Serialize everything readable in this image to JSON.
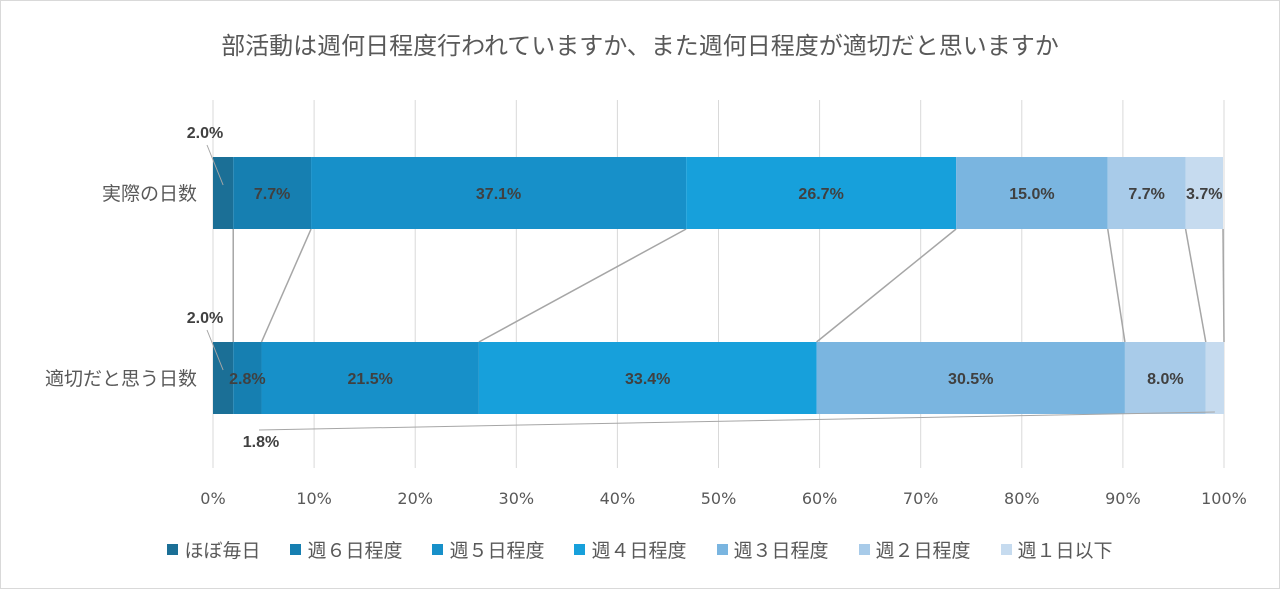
{
  "chart_data": {
    "type": "bar",
    "orientation": "horizontal",
    "stacked": "percent",
    "title": "部活動は週何日程度行われていますか、また週何日程度が適切だと思いますか",
    "categories": [
      "実際の日数",
      "適切だと思う日数"
    ],
    "series": [
      {
        "name": "ほぼ毎日",
        "color": "#1B6F96",
        "values": [
          2.0,
          2.0
        ],
        "labels": [
          "2.0%",
          "2.0%"
        ]
      },
      {
        "name": "週６日程度",
        "color": "#167FB1",
        "values": [
          7.7,
          2.8
        ],
        "labels": [
          "7.7%",
          "2.8%"
        ]
      },
      {
        "name": "週５日程度",
        "color": "#1790C9",
        "values": [
          37.1,
          21.5
        ],
        "labels": [
          "37.1%",
          "21.5%"
        ]
      },
      {
        "name": "週４日程度",
        "color": "#17A0DB",
        "values": [
          26.7,
          33.4
        ],
        "labels": [
          "26.7%",
          "33.4%"
        ]
      },
      {
        "name": "週３日程度",
        "color": "#7AB5E0",
        "values": [
          15.0,
          30.5
        ],
        "labels": [
          "15.0%",
          "30.5%"
        ]
      },
      {
        "name": "週２日程度",
        "color": "#A8CBE9",
        "values": [
          7.7,
          8.0
        ],
        "labels": [
          "7.7%",
          "8.0%"
        ]
      },
      {
        "name": "週１日以下",
        "color": "#C6DBEF",
        "values": [
          3.7,
          1.8
        ],
        "labels": [
          "3.7%",
          "1.8%"
        ]
      }
    ],
    "x_ticks": [
      "0%",
      "10%",
      "20%",
      "30%",
      "40%",
      "50%",
      "60%",
      "70%",
      "80%",
      "90%",
      "100%"
    ],
    "xlim": [
      0,
      100
    ],
    "grid": true,
    "series_lines": true,
    "legend": "bottom"
  }
}
